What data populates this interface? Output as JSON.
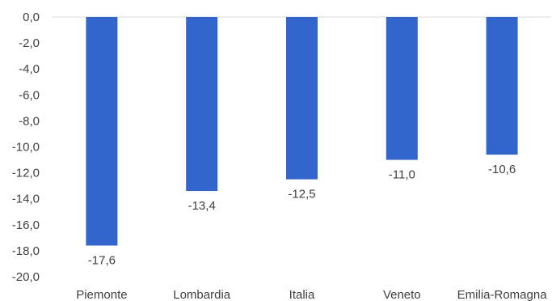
{
  "chart_data": {
    "type": "bar",
    "categories": [
      "Piemonte",
      "Lombardia",
      "Italia",
      "Veneto",
      "Emilia-Romagna"
    ],
    "values": [
      -17.6,
      -13.4,
      -12.5,
      -11.0,
      -10.6
    ],
    "data_labels": [
      "-17,6",
      "-13,4",
      "-12,5",
      "-11,0",
      "-10,6"
    ],
    "title": "",
    "xlabel": "",
    "ylabel": "",
    "ylim": [
      -20,
      0
    ],
    "yticks": [
      0,
      -2,
      -4,
      -6,
      -8,
      -10,
      -12,
      -14,
      -16,
      -18,
      -20
    ],
    "ytick_labels": [
      "0,0",
      "-2,0",
      "-4,0",
      "-6,0",
      "-8,0",
      "-10,0",
      "-12,0",
      "-14,0",
      "-16,0",
      "-18,0",
      "-20,0"
    ],
    "grid": false,
    "legend": "none",
    "colors": {
      "bar": "#3366CC",
      "axis": "#D9D9D9",
      "text": "#404040"
    }
  }
}
